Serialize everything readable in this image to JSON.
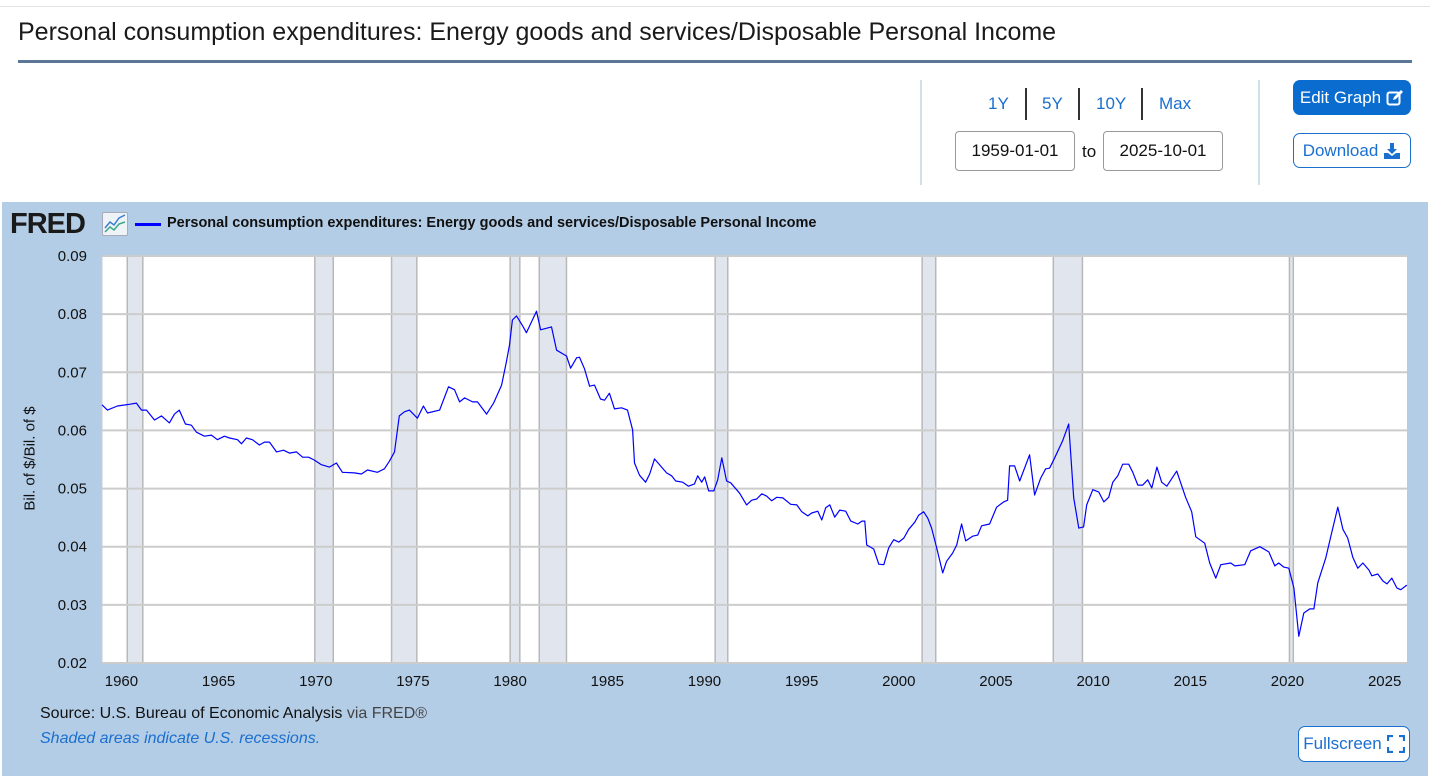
{
  "header": {
    "title": "Personal consumption expenditures: Energy goods and services/Disposable Personal Income"
  },
  "controls": {
    "ranges": [
      "1Y",
      "5Y",
      "10Y",
      "Max"
    ],
    "start_date": "1959-01-01",
    "to_label": "to",
    "end_date": "2025-10-01",
    "edit_graph_label": "Edit Graph",
    "download_label": "Download",
    "fullscreen_label": "Fullscreen"
  },
  "colors": {
    "accent": "#0b6ccf",
    "series": "#0000ff",
    "panel": "#b4cde6",
    "recession": "#e1e6ee"
  },
  "footer": {
    "source_prefix": "Source: U.S. Bureau of Economic Analysis",
    "source_via": " via FRED®",
    "shaded_note": "Shaded areas indicate U.S. recessions."
  },
  "logo": "FRED",
  "chart_data": {
    "type": "line",
    "title": "Personal consumption expenditures: Energy goods and services/Disposable Personal Income",
    "xlabel": "",
    "ylabel": "Bil. of $/Bil. of $",
    "xlim": [
      1959.0,
      2026.15
    ],
    "ylim": [
      0.02,
      0.09
    ],
    "yticks": [
      "0.02",
      "0.03",
      "0.04",
      "0.05",
      "0.06",
      "0.07",
      "0.08",
      "0.09"
    ],
    "xticks": [
      "1960",
      "1965",
      "1970",
      "1975",
      "1980",
      "1985",
      "1990",
      "1995",
      "2000",
      "2005",
      "2010",
      "2015",
      "2020",
      "2025"
    ],
    "grid": "horizontal",
    "legend_placement": "top-left",
    "recessions": [
      [
        1960.3,
        1961.1
      ],
      [
        1969.95,
        1970.9
      ],
      [
        1973.9,
        1975.2
      ],
      [
        1980.0,
        1980.5
      ],
      [
        1981.5,
        1982.9
      ],
      [
        1990.55,
        1991.2
      ],
      [
        2001.2,
        2001.9
      ],
      [
        2007.95,
        2009.45
      ],
      [
        2020.1,
        2020.3
      ]
    ],
    "series": [
      {
        "name": "Personal consumption expenditures: Energy goods and services/Disposable Personal Income",
        "x": [
          1959.0,
          1959.28,
          1959.79,
          1960.41,
          1960.77,
          1961.03,
          1961.29,
          1961.7,
          1962.06,
          1962.47,
          1962.73,
          1962.98,
          1963.29,
          1963.6,
          1963.86,
          1964.27,
          1964.63,
          1964.94,
          1965.3,
          1965.56,
          1965.97,
          1966.18,
          1966.43,
          1966.74,
          1967.1,
          1967.36,
          1967.62,
          1967.98,
          1968.34,
          1968.65,
          1969.01,
          1969.32,
          1969.63,
          1969.93,
          1970.29,
          1970.7,
          1971.06,
          1971.37,
          1971.99,
          1972.35,
          1972.66,
          1973.17,
          1973.53,
          1973.79,
          1974.05,
          1974.3,
          1974.56,
          1974.82,
          1975.23,
          1975.54,
          1975.75,
          1976.37,
          1976.83,
          1977.14,
          1977.4,
          1977.66,
          1978.07,
          1978.32,
          1978.79,
          1979.15,
          1979.56,
          1979.81,
          1979.97,
          1980.12,
          1980.33,
          1980.64,
          1980.84,
          1981.36,
          1981.57,
          1982.13,
          1982.39,
          1982.9,
          1983.11,
          1983.42,
          1983.57,
          1983.83,
          1984.09,
          1984.34,
          1984.65,
          1984.86,
          1985.11,
          1985.37,
          1985.73,
          1986.04,
          1986.3,
          1986.4,
          1986.66,
          1986.97,
          1987.18,
          1987.43,
          1987.74,
          1988.05,
          1988.31,
          1988.52,
          1988.88,
          1989.18,
          1989.49,
          1989.65,
          1989.86,
          1990.01,
          1990.22,
          1990.48,
          1990.68,
          1990.89,
          1991.14,
          1991.35,
          1991.81,
          1992.17,
          1992.43,
          1992.69,
          1992.95,
          1993.2,
          1993.46,
          1993.72,
          1994.03,
          1994.44,
          1994.75,
          1995.01,
          1995.32,
          1995.52,
          1995.83,
          1996.04,
          1996.24,
          1996.45,
          1996.7,
          1996.96,
          1997.27,
          1997.53,
          1997.89,
          1998.1,
          1998.25,
          1998.35,
          1998.71,
          1998.97,
          1999.23,
          1999.48,
          1999.74,
          2000.0,
          2000.26,
          2000.51,
          2000.82,
          2001.02,
          2001.28,
          2001.49,
          2001.69,
          2001.95,
          2002.26,
          2002.46,
          2002.77,
          2002.98,
          2003.23,
          2003.44,
          2003.8,
          2004.06,
          2004.26,
          2004.67,
          2005.03,
          2005.4,
          2005.6,
          2005.7,
          2005.96,
          2006.22,
          2006.73,
          2006.99,
          2007.3,
          2007.56,
          2007.76,
          2008.02,
          2008.43,
          2008.74,
          2009.0,
          2009.26,
          2009.51,
          2009.67,
          2009.98,
          2010.29,
          2010.55,
          2010.8,
          2011.01,
          2011.27,
          2011.52,
          2011.83,
          2012.04,
          2012.3,
          2012.55,
          2012.81,
          2013.02,
          2013.28,
          2013.53,
          2013.79,
          2014.3,
          2014.76,
          2015.07,
          2015.28,
          2015.74,
          2016.0,
          2016.31,
          2016.57,
          2017.08,
          2017.29,
          2017.8,
          2018.11,
          2018.58,
          2019.04,
          2019.35,
          2019.55,
          2019.81,
          2020.07,
          2020.33,
          2020.58,
          2020.84,
          2021.15,
          2021.36,
          2021.56,
          2021.97,
          2022.28,
          2022.59,
          2022.85,
          2023.1,
          2023.36,
          2023.62,
          2023.88,
          2024.19,
          2024.34,
          2024.65,
          2024.91,
          2025.12,
          2025.37,
          2025.63,
          2025.83,
          2026.14
        ],
        "y": [
          0.0644,
          0.0635,
          0.0642,
          0.0645,
          0.0647,
          0.0635,
          0.0635,
          0.0618,
          0.0625,
          0.0613,
          0.0628,
          0.0635,
          0.0611,
          0.0609,
          0.0597,
          0.059,
          0.0592,
          0.0584,
          0.059,
          0.0587,
          0.0584,
          0.0577,
          0.0587,
          0.0584,
          0.0575,
          0.058,
          0.058,
          0.0563,
          0.0566,
          0.0561,
          0.0563,
          0.0554,
          0.0554,
          0.0549,
          0.0541,
          0.0537,
          0.0544,
          0.0528,
          0.0527,
          0.0525,
          0.0532,
          0.0528,
          0.0534,
          0.0547,
          0.0563,
          0.0625,
          0.0632,
          0.0635,
          0.0621,
          0.0642,
          0.063,
          0.0635,
          0.0675,
          0.067,
          0.0649,
          0.0656,
          0.0649,
          0.0649,
          0.0628,
          0.0647,
          0.0678,
          0.0718,
          0.0747,
          0.079,
          0.0797,
          0.078,
          0.0768,
          0.0805,
          0.0773,
          0.0778,
          0.0738,
          0.0728,
          0.0707,
          0.0725,
          0.0726,
          0.0706,
          0.0676,
          0.0678,
          0.0654,
          0.0652,
          0.0664,
          0.0637,
          0.0639,
          0.0635,
          0.0601,
          0.0544,
          0.0523,
          0.0511,
          0.0525,
          0.0551,
          0.0539,
          0.0527,
          0.0522,
          0.0513,
          0.0511,
          0.0504,
          0.0508,
          0.0522,
          0.0511,
          0.052,
          0.0496,
          0.0496,
          0.0515,
          0.0553,
          0.0513,
          0.051,
          0.0492,
          0.0472,
          0.048,
          0.0482,
          0.0491,
          0.0487,
          0.0479,
          0.0485,
          0.0484,
          0.0473,
          0.0472,
          0.046,
          0.0453,
          0.0458,
          0.0461,
          0.0446,
          0.0467,
          0.0472,
          0.0451,
          0.0463,
          0.0461,
          0.0444,
          0.0439,
          0.0444,
          0.0444,
          0.0403,
          0.0396,
          0.037,
          0.0369,
          0.0398,
          0.0412,
          0.0408,
          0.0415,
          0.043,
          0.0442,
          0.0454,
          0.046,
          0.0449,
          0.0432,
          0.0398,
          0.0355,
          0.0375,
          0.0389,
          0.0403,
          0.0439,
          0.041,
          0.0418,
          0.042,
          0.0436,
          0.0439,
          0.0468,
          0.0477,
          0.048,
          0.0539,
          0.0539,
          0.0513,
          0.0558,
          0.0489,
          0.0518,
          0.0534,
          0.0535,
          0.0553,
          0.0582,
          0.0611,
          0.0484,
          0.0432,
          0.0434,
          0.0472,
          0.0498,
          0.0494,
          0.0477,
          0.0485,
          0.0511,
          0.0522,
          0.0542,
          0.0542,
          0.0528,
          0.0506,
          0.0506,
          0.0515,
          0.0501,
          0.0537,
          0.0511,
          0.0504,
          0.053,
          0.0485,
          0.046,
          0.0417,
          0.0406,
          0.0372,
          0.0346,
          0.0369,
          0.0372,
          0.0367,
          0.0369,
          0.0393,
          0.04,
          0.0391,
          0.0367,
          0.0372,
          0.0365,
          0.0363,
          0.0329,
          0.0246,
          0.0286,
          0.0293,
          0.0293,
          0.0338,
          0.0381,
          0.0425,
          0.0468,
          0.043,
          0.0415,
          0.0382,
          0.0363,
          0.0372,
          0.036,
          0.035,
          0.0353,
          0.0341,
          0.0336,
          0.0346,
          0.0329,
          0.0326,
          0.0334
        ]
      }
    ]
  }
}
